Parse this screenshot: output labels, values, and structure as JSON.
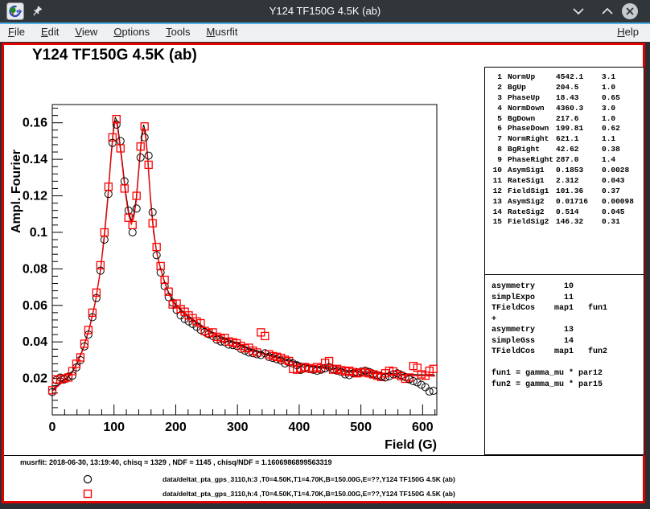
{
  "window": {
    "title": "Y124 TF150G 4.5K (ab)",
    "controls": {
      "minimize": "minimize",
      "maximize": "maximize",
      "close": "close"
    }
  },
  "menubar": {
    "items": [
      {
        "label": "File"
      },
      {
        "label": "Edit"
      },
      {
        "label": "View"
      },
      {
        "label": "Options"
      },
      {
        "label": "Tools"
      },
      {
        "label": "Musrfit"
      }
    ],
    "help": {
      "label": "Help"
    }
  },
  "chart_data": {
    "type": "scatter",
    "title": "Y124 TF150G 4.5K (ab)",
    "xlabel": "Field (G)",
    "ylabel": "Ampl. Fourier",
    "xlim": [
      0,
      623
    ],
    "ylim": [
      0,
      0.17
    ],
    "x_major_ticks": [
      0,
      100,
      200,
      300,
      400,
      500,
      600
    ],
    "x_minor_step": 20,
    "y_major_ticks": [
      0.02,
      0.04,
      0.06,
      0.08,
      0.1,
      0.12,
      0.14,
      0.16
    ],
    "y_minor_step": 0.004,
    "grid": false,
    "legend_position": "bottom-pad",
    "x": [
      0,
      6.5,
      13,
      19.5,
      26,
      32.5,
      39,
      45.5,
      52,
      58.5,
      65,
      71.5,
      78,
      84.5,
      91,
      97.5,
      104,
      110.5,
      117,
      123.5,
      130,
      136.5,
      143,
      149.5,
      156,
      162.5,
      169,
      175.5,
      182,
      188.5,
      195,
      201.5,
      208,
      214.5,
      221,
      227.5,
      234,
      240.5,
      247,
      253.5,
      260,
      266.5,
      273,
      279.5,
      286,
      292.5,
      299,
      305.5,
      312,
      318.5,
      325,
      331.5,
      338,
      344.5,
      351,
      357.5,
      364,
      370.5,
      377,
      383.5,
      390,
      396.5,
      403,
      409.5,
      416,
      422.5,
      429,
      435.5,
      442,
      448.5,
      455,
      461.5,
      468,
      474.5,
      481,
      487.5,
      494,
      500.5,
      507,
      513.5,
      520,
      526.5,
      533,
      539.5,
      546,
      552.5,
      559,
      565.5,
      572,
      578.5,
      585,
      591.5,
      598,
      604.5,
      611,
      617.5
    ],
    "series": [
      {
        "name": "data/deltat_pta_gps_3110,h:3 ,T0=4.50K,T1=4.70K,B=150.00G,E=??,Y124 TF150G 4.5K (ab)",
        "marker": "open-circle",
        "color": "#000000",
        "values": [
          0.0125,
          0.019,
          0.0205,
          0.0195,
          0.021,
          0.0215,
          0.026,
          0.03,
          0.0375,
          0.044,
          0.0535,
          0.064,
          0.079,
          0.096,
          0.121,
          0.149,
          0.159,
          0.15,
          0.128,
          0.112,
          0.1,
          0.113,
          0.141,
          0.152,
          0.142,
          0.111,
          0.0875,
          0.078,
          0.0705,
          0.0645,
          0.0615,
          0.0575,
          0.0545,
          0.0525,
          0.0512,
          0.0498,
          0.0482,
          0.0466,
          0.0455,
          0.0442,
          0.0432,
          0.0412,
          0.0402,
          0.0398,
          0.0385,
          0.0382,
          0.0378,
          0.0362,
          0.0352,
          0.0342,
          0.0338,
          0.0332,
          0.0328,
          0.0338,
          0.0318,
          0.0312,
          0.0305,
          0.0298,
          0.0282,
          0.0288,
          0.0282,
          0.0272,
          0.0248,
          0.0258,
          0.0252,
          0.0248,
          0.0242,
          0.0248,
          0.0255,
          0.0262,
          0.0252,
          0.0242,
          0.0235,
          0.0222,
          0.0218,
          0.0228,
          0.0232,
          0.0238,
          0.0242,
          0.0235,
          0.0225,
          0.0218,
          0.0212,
          0.0205,
          0.0212,
          0.0222,
          0.0228,
          0.0218,
          0.0208,
          0.0195,
          0.0185,
          0.0178,
          0.0165,
          0.0152,
          0.0128,
          0.0132
        ]
      },
      {
        "name": "data/deltat_pta_gps_3110,h:4 ,T0=4.50K,T1=4.70K,B=150.00G,E=??,Y124 TF150G 4.5K (ab)",
        "marker": "open-square",
        "color": "#ff0000",
        "values": [
          0.0135,
          0.0195,
          0.0195,
          0.02,
          0.0205,
          0.024,
          0.028,
          0.0315,
          0.039,
          0.0465,
          0.056,
          0.067,
          0.082,
          0.1,
          0.125,
          0.152,
          0.162,
          0.146,
          0.124,
          0.108,
          0.104,
          0.12,
          0.147,
          0.158,
          0.137,
          0.105,
          0.092,
          0.0815,
          0.074,
          0.0675,
          0.0605,
          0.061,
          0.058,
          0.0565,
          0.0545,
          0.053,
          0.0512,
          0.0502,
          0.046,
          0.0448,
          0.0452,
          0.0428,
          0.0418,
          0.0422,
          0.0402,
          0.0398,
          0.0392,
          0.0378,
          0.0365,
          0.0368,
          0.0352,
          0.0342,
          0.0452,
          0.0432,
          0.0332,
          0.0322,
          0.0318,
          0.0312,
          0.0302,
          0.0295,
          0.0252,
          0.0248,
          0.0255,
          0.0262,
          0.0256,
          0.0252,
          0.0262,
          0.0255,
          0.0285,
          0.0295,
          0.0248,
          0.0252,
          0.0245,
          0.0238,
          0.0242,
          0.0235,
          0.0228,
          0.0232,
          0.0235,
          0.0228,
          0.0222,
          0.0215,
          0.0208,
          0.0228,
          0.0242,
          0.0238,
          0.0222,
          0.0212,
          0.0198,
          0.0205,
          0.0268,
          0.0258,
          0.0222,
          0.0215,
          0.0242,
          0.0252
        ]
      }
    ],
    "fit_curve": {
      "color": "#ff0000",
      "shadow_color": "#000000",
      "points": [
        [
          0,
          0.013
        ],
        [
          10,
          0.016
        ],
        [
          20,
          0.0187
        ],
        [
          30,
          0.022
        ],
        [
          40,
          0.028
        ],
        [
          50,
          0.036
        ],
        [
          60,
          0.047
        ],
        [
          70,
          0.062
        ],
        [
          78,
          0.079
        ],
        [
          84,
          0.096
        ],
        [
          90,
          0.118
        ],
        [
          95,
          0.14
        ],
        [
          99,
          0.155
        ],
        [
          102,
          0.161
        ],
        [
          105,
          0.159
        ],
        [
          109,
          0.149
        ],
        [
          114,
          0.135
        ],
        [
          119,
          0.12
        ],
        [
          124,
          0.109
        ],
        [
          128,
          0.1045
        ],
        [
          132,
          0.108
        ],
        [
          136,
          0.117
        ],
        [
          141,
          0.137
        ],
        [
          145,
          0.152
        ],
        [
          148,
          0.157
        ],
        [
          151,
          0.153
        ],
        [
          155,
          0.138
        ],
        [
          159,
          0.118
        ],
        [
          164,
          0.1
        ],
        [
          169,
          0.089
        ],
        [
          175,
          0.0805
        ],
        [
          181,
          0.0735
        ],
        [
          188,
          0.067
        ],
        [
          195,
          0.062
        ],
        [
          203,
          0.059
        ],
        [
          212,
          0.056
        ],
        [
          221,
          0.0535
        ],
        [
          231,
          0.051
        ],
        [
          241,
          0.0487
        ],
        [
          251,
          0.0462
        ],
        [
          261,
          0.0444
        ],
        [
          271,
          0.0428
        ],
        [
          281,
          0.0413
        ],
        [
          291,
          0.0399
        ],
        [
          301,
          0.0386
        ],
        [
          311,
          0.0371
        ],
        [
          321,
          0.0357
        ],
        [
          331,
          0.0345
        ],
        [
          341,
          0.0334
        ],
        [
          351,
          0.0324
        ],
        [
          361,
          0.0314
        ],
        [
          371,
          0.0305
        ],
        [
          381,
          0.0296
        ],
        [
          391,
          0.0287
        ],
        [
          401,
          0.0279
        ],
        [
          411,
          0.0272
        ],
        [
          421,
          0.0266
        ],
        [
          431,
          0.026
        ],
        [
          441,
          0.0255
        ],
        [
          451,
          0.025
        ],
        [
          461,
          0.0246
        ],
        [
          471,
          0.0242
        ],
        [
          481,
          0.0238
        ],
        [
          491,
          0.0235
        ],
        [
          501,
          0.0232
        ],
        [
          511,
          0.0229
        ],
        [
          521,
          0.0227
        ],
        [
          531,
          0.0224
        ],
        [
          541,
          0.0222
        ],
        [
          551,
          0.022
        ],
        [
          561,
          0.0219
        ],
        [
          571,
          0.0217
        ],
        [
          581,
          0.0216
        ],
        [
          591,
          0.0215
        ],
        [
          601,
          0.0214
        ],
        [
          611,
          0.0213
        ],
        [
          620,
          0.0212
        ]
      ]
    }
  },
  "param_box": {
    "rows": [
      {
        "no": "1",
        "name": "NormUp",
        "value": "4542.1",
        "error": "3.1"
      },
      {
        "no": "2",
        "name": "BgUp",
        "value": "204.5",
        "error": "1.0"
      },
      {
        "no": "3",
        "name": "PhaseUp",
        "value": "18.43",
        "error": "0.65"
      },
      {
        "no": "4",
        "name": "NormDown",
        "value": "4360.3",
        "error": "3.0"
      },
      {
        "no": "5",
        "name": "BgDown",
        "value": "217.6",
        "error": "1.0"
      },
      {
        "no": "6",
        "name": "PhaseDown",
        "value": "199.81",
        "error": "0.62"
      },
      {
        "no": "7",
        "name": "NormRight",
        "value": "621.1",
        "error": "1.1"
      },
      {
        "no": "8",
        "name": "BgRight",
        "value": "42.62",
        "error": "0.38"
      },
      {
        "no": "9",
        "name": "PhaseRight",
        "value": "287.0",
        "error": "1.4"
      },
      {
        "no": "10",
        "name": "AsymSig1",
        "value": "0.1853",
        "error": "0.0028"
      },
      {
        "no": "11",
        "name": "RateSig1",
        "value": "2.312",
        "error": "0.043"
      },
      {
        "no": "12",
        "name": "FieldSig1",
        "value": "101.36",
        "error": "0.37"
      },
      {
        "no": "13",
        "name": "AsymSig2",
        "value": "0.01716",
        "error": "0.00098"
      },
      {
        "no": "14",
        "name": "RateSig2",
        "value": "0.514",
        "error": "0.045"
      },
      {
        "no": "15",
        "name": "FieldSig2",
        "value": "146.32",
        "error": "0.31"
      }
    ]
  },
  "theory_box": {
    "lines": "asymmetry      10\nsimplExpo      11\nTFieldCos    map1   fun1\n+\nasymmetry      13\nsimpleGss      14\nTFieldCos    map1   fun2\n\nfun1 = gamma_mu * par12\nfun2 = gamma_mu * par15"
  },
  "footer": {
    "status": "musrfit: 2018-06-30, 13:19:40, chisq = 1329 , NDF = 1145 , chisq/NDF = 1.1606986899563319",
    "legend": [
      {
        "marker": "open-circle",
        "color": "#000000",
        "label": "data/deltat_pta_gps_3110,h:3 ,T0=4.50K,T1=4.70K,B=150.00G,E=??,Y124 TF150G 4.5K (ab)"
      },
      {
        "marker": "open-square",
        "color": "#ff0000",
        "label": "data/deltat_pta_gps_3110,h:4 ,T0=4.50K,T1=4.70K,B=150.00G,E=??,Y124 TF150G 4.5K (ab)"
      }
    ]
  }
}
